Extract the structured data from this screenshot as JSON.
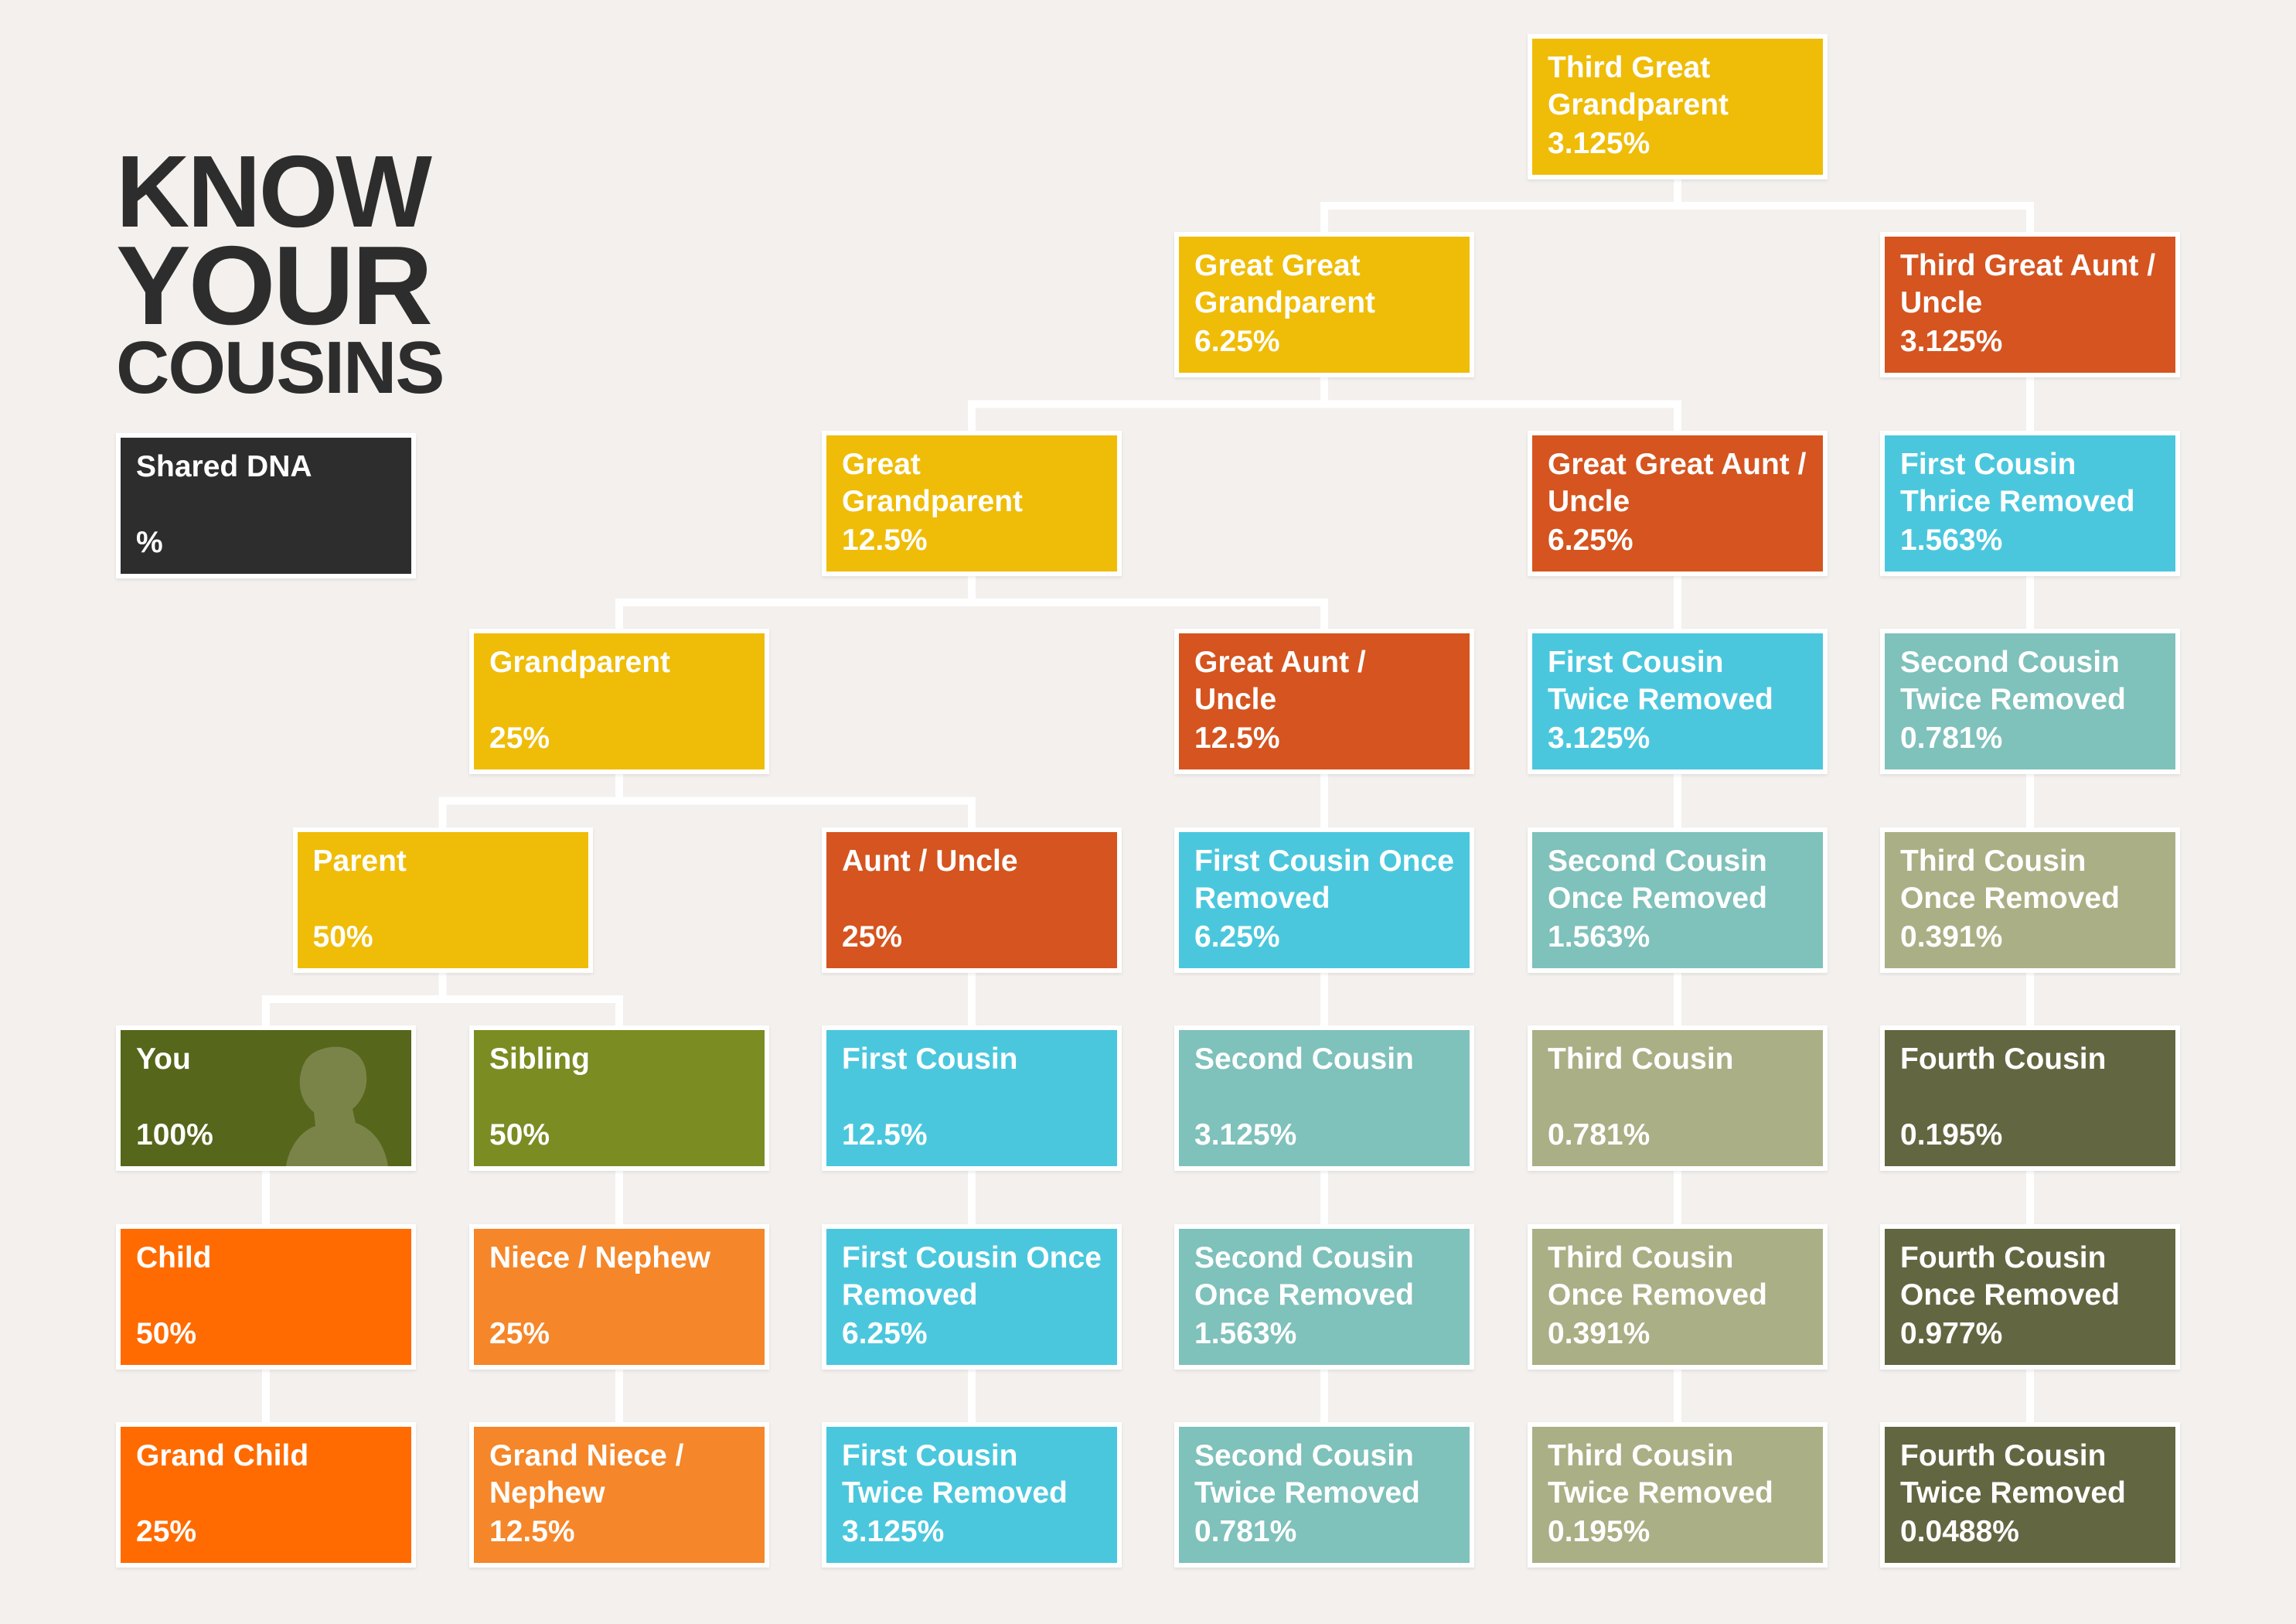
{
  "title": {
    "line1": "KNOW",
    "line2": "YOUR",
    "line3": "COUSINS"
  },
  "legend": {
    "label": "Shared DNA",
    "unit": "%"
  },
  "colors": {
    "background": "#f3f0ed",
    "ancestor": "#efbc08",
    "aunt_uncle": "#d5541f",
    "cousin_1": "#4bc7dd",
    "cousin_2": "#7fc1bb",
    "cousin_3": "#abaf85",
    "cousin_4": "#636741",
    "self": "#56661b",
    "sibling": "#7b8c23",
    "descendant": "#ff6b00",
    "sibling_descendant": "#f58629",
    "legend": "#2d2d2d"
  },
  "nodes": [
    {
      "id": "third-great-grandparent",
      "label": "Third Great Grandparent",
      "percent": "3.125%",
      "color": "ancestor"
    },
    {
      "id": "great-great-grandparent",
      "label": "Great Great Grandparent",
      "percent": "6.25%",
      "color": "ancestor"
    },
    {
      "id": "third-great-aunt-uncle",
      "label": "Third Great Aunt / Uncle",
      "percent": "3.125%",
      "color": "aunt_uncle"
    },
    {
      "id": "great-grandparent",
      "label": "Great Grandparent",
      "percent": "12.5%",
      "color": "ancestor"
    },
    {
      "id": "great-great-aunt-uncle",
      "label": "Great Great Aunt / Uncle",
      "percent": "6.25%",
      "color": "aunt_uncle"
    },
    {
      "id": "first-cousin-thrice-removed",
      "label": "First Cousin Thrice Removed",
      "percent": "1.563%",
      "color": "cousin_1"
    },
    {
      "id": "grandparent",
      "label": "Grandparent",
      "percent": "25%",
      "color": "ancestor"
    },
    {
      "id": "great-aunt-uncle",
      "label": "Great Aunt / Uncle",
      "percent": "12.5%",
      "color": "aunt_uncle"
    },
    {
      "id": "first-cousin-twice-removed-up",
      "label": "First Cousin Twice Removed",
      "percent": "3.125%",
      "color": "cousin_1"
    },
    {
      "id": "second-cousin-twice-removed-up",
      "label": "Second Cousin Twice Removed",
      "percent": "0.781%",
      "color": "cousin_2"
    },
    {
      "id": "parent",
      "label": "Parent",
      "percent": "50%",
      "color": "ancestor"
    },
    {
      "id": "aunt-uncle",
      "label": "Aunt / Uncle",
      "percent": "25%",
      "color": "aunt_uncle"
    },
    {
      "id": "first-cousin-once-removed-up",
      "label": "First Cousin Once Removed",
      "percent": "6.25%",
      "color": "cousin_1"
    },
    {
      "id": "second-cousin-once-removed-up",
      "label": "Second Cousin Once Removed",
      "percent": "1.563%",
      "color": "cousin_2"
    },
    {
      "id": "third-cousin-once-removed-up",
      "label": "Third Cousin Once Removed",
      "percent": "0.391%",
      "color": "cousin_3"
    },
    {
      "id": "you",
      "label": "You",
      "percent": "100%",
      "color": "self"
    },
    {
      "id": "sibling",
      "label": "Sibling",
      "percent": "50%",
      "color": "sibling"
    },
    {
      "id": "first-cousin",
      "label": "First Cousin",
      "percent": "12.5%",
      "color": "cousin_1"
    },
    {
      "id": "second-cousin",
      "label": "Second Cousin",
      "percent": "3.125%",
      "color": "cousin_2"
    },
    {
      "id": "third-cousin",
      "label": "Third Cousin",
      "percent": "0.781%",
      "color": "cousin_3"
    },
    {
      "id": "fourth-cousin",
      "label": "Fourth Cousin",
      "percent": "0.195%",
      "color": "cousin_4"
    },
    {
      "id": "child",
      "label": "Child",
      "percent": "50%",
      "color": "descendant"
    },
    {
      "id": "niece-nephew",
      "label": "Niece / Nephew",
      "percent": "25%",
      "color": "sibling_descendant"
    },
    {
      "id": "first-cousin-once-removed-down",
      "label": "First Cousin Once Removed",
      "percent": "6.25%",
      "color": "cousin_1"
    },
    {
      "id": "second-cousin-once-removed-down",
      "label": "Second Cousin Once Removed",
      "percent": "1.563%",
      "color": "cousin_2"
    },
    {
      "id": "third-cousin-once-removed-down",
      "label": "Third Cousin Once Removed",
      "percent": "0.391%",
      "color": "cousin_3"
    },
    {
      "id": "fourth-cousin-once-removed",
      "label": "Fourth Cousin Once Removed",
      "percent": "0.977%",
      "color": "cousin_4"
    },
    {
      "id": "grand-child",
      "label": "Grand Child",
      "percent": "25%",
      "color": "descendant"
    },
    {
      "id": "grand-niece-nephew",
      "label": "Grand Niece / Nephew",
      "percent": "12.5%",
      "color": "sibling_descendant"
    },
    {
      "id": "first-cousin-twice-removed-down",
      "label": "First Cousin Twice Removed",
      "percent": "3.125%",
      "color": "cousin_1"
    },
    {
      "id": "second-cousin-twice-removed-down",
      "label": "Second Cousin Twice Removed",
      "percent": "0.781%",
      "color": "cousin_2"
    },
    {
      "id": "third-cousin-twice-removed-down",
      "label": "Third Cousin Twice Removed",
      "percent": "0.195%",
      "color": "cousin_3"
    },
    {
      "id": "fourth-cousin-twice-removed",
      "label": "Fourth Cousin Twice Removed",
      "percent": "0.0488%",
      "color": "cousin_4"
    }
  ]
}
